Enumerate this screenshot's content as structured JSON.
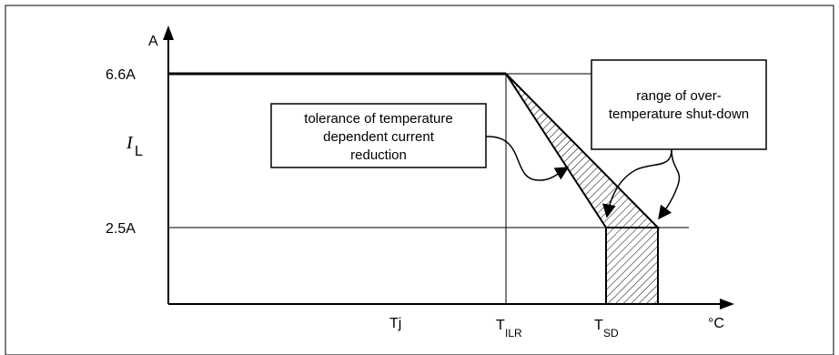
{
  "axes": {
    "y_unit": "A",
    "x_unit": "°C",
    "y_symbol": "I",
    "y_symbol_sub": "L",
    "x_symbol": "Tj"
  },
  "y_ticks": [
    {
      "label": "6.6A",
      "value": 6.6
    },
    {
      "label": "2.5A",
      "value": 2.5
    }
  ],
  "x_ticks": [
    {
      "main": "T",
      "sub": "ILR"
    },
    {
      "main": "T",
      "sub": "SD"
    }
  ],
  "callouts": {
    "tolerance": [
      "tolerance of temperature",
      "dependent current",
      "reduction"
    ],
    "shutdown": [
      "range of over-",
      "temperature shut-down"
    ]
  }
}
